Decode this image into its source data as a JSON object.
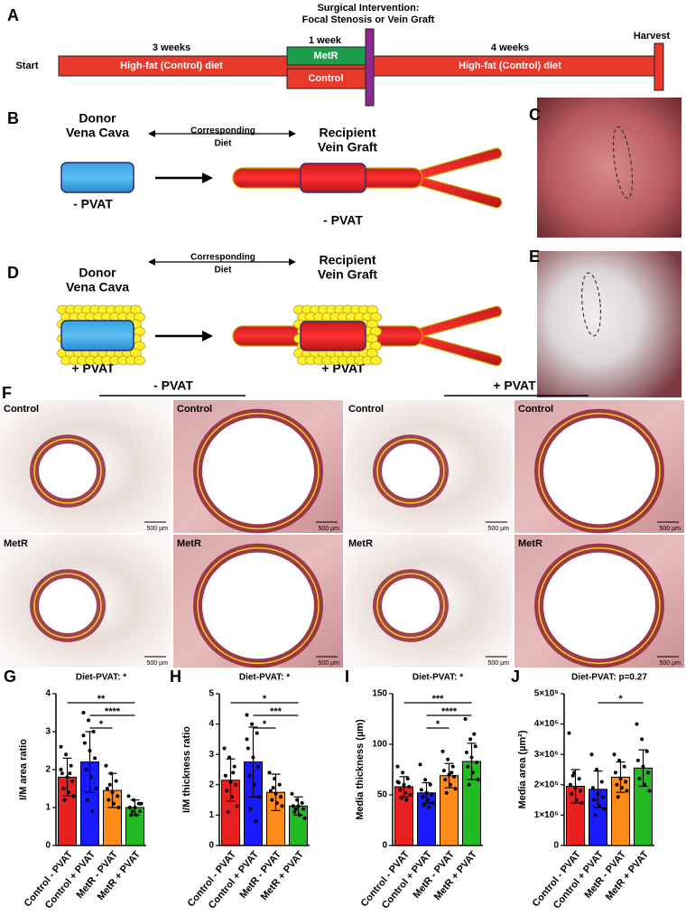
{
  "panel_a": {
    "label": "A",
    "title_lines": [
      "Surgical Intervention:",
      "Focal Stenosis or Vein Graft"
    ],
    "start": "Start",
    "phase1_duration": "3 weeks",
    "phase1_diet": "High-fat (Control) diet",
    "phase2_duration": "1 week",
    "phase2_metr": "MetR",
    "phase2_control": "Control",
    "phase3_duration": "4 weeks",
    "phase3_diet": "High-fat (Control) diet",
    "harvest": "Harvest"
  },
  "panel_b": {
    "label": "B",
    "donor": [
      "Donor",
      "Vena Cava"
    ],
    "donor_condition": "- PVAT",
    "corresponding": [
      "Corresponding",
      "Diet"
    ],
    "recipient": [
      "Recipient",
      "Vein Graft"
    ],
    "recipient_condition": "- PVAT"
  },
  "panel_c": {
    "label": "C"
  },
  "panel_d": {
    "label": "D",
    "donor": [
      "Donor",
      "Vena Cava"
    ],
    "donor_condition": "+ PVAT",
    "corresponding": [
      "Corresponding",
      "Diet"
    ],
    "recipient": [
      "Recipient",
      "Vein Graft"
    ],
    "recipient_condition": "+ PVAT"
  },
  "panel_e": {
    "label": "E"
  },
  "panel_f": {
    "label": "F",
    "groups": [
      "- PVAT",
      "+ PVAT"
    ],
    "images": [
      {
        "label": "Control",
        "scale": "500 µm"
      },
      {
        "label": "Control",
        "scale": "500 µm"
      },
      {
        "label": "Control",
        "scale": "500 µm"
      },
      {
        "label": "Control",
        "scale": "500 µm"
      },
      {
        "label": "MetR",
        "scale": "500 µm"
      },
      {
        "label": "MetR",
        "scale": "500 µm"
      },
      {
        "label": "MetR",
        "scale": "500 µm"
      },
      {
        "label": "MetR",
        "scale": "500 µm"
      }
    ]
  },
  "chart_data": [
    {
      "type": "bar",
      "panel": "G",
      "title": "Diet-PVAT: *",
      "y_label": "I/M area ratio",
      "categories": [
        "Control - PVAT",
        "Control + PVAT",
        "MetR - PVAT",
        "MetR + PVAT"
      ],
      "colors": [
        "#e8201f",
        "#1a1aff",
        "#ff8c1a",
        "#22bb22"
      ],
      "values": [
        1.8,
        2.2,
        1.45,
        1.0
      ],
      "errors": [
        0.5,
        0.8,
        0.45,
        0.2
      ],
      "points": [
        [
          2.6,
          2.4,
          2.1,
          1.9,
          1.8,
          1.7,
          1.5,
          1.4,
          1.3,
          1.2,
          1.9,
          2.0
        ],
        [
          3.5,
          3.3,
          3.0,
          2.7,
          2.5,
          2.3,
          2.0,
          1.8,
          1.5,
          1.2,
          0.9,
          2.9
        ],
        [
          2.1,
          1.9,
          1.7,
          1.5,
          1.4,
          1.3,
          1.2,
          1.1,
          1.0,
          1.6
        ],
        [
          1.3,
          1.2,
          1.1,
          1.0,
          1.0,
          0.9,
          0.8,
          0.8,
          1.1,
          0.9
        ]
      ],
      "ylim": [
        0,
        4
      ],
      "yticks": [
        0,
        1,
        2,
        3,
        4
      ],
      "comparisons": [
        {
          "label": "**",
          "groups": [
            "Control - PVAT",
            "MetR + PVAT"
          ]
        },
        {
          "label": "****",
          "groups": [
            "Control + PVAT",
            "MetR + PVAT"
          ]
        },
        {
          "label": "*",
          "groups": [
            "Control + PVAT",
            "MetR - PVAT"
          ]
        }
      ]
    },
    {
      "type": "bar",
      "panel": "H",
      "title": "Diet-PVAT: *",
      "y_label": "I/M thickness ratio",
      "categories": [
        "Control - PVAT",
        "Control + PVAT",
        "MetR - PVAT",
        "MetR + PVAT"
      ],
      "colors": [
        "#e8201f",
        "#1a1aff",
        "#ff8c1a",
        "#22bb22"
      ],
      "values": [
        2.15,
        2.75,
        1.75,
        1.3
      ],
      "errors": [
        0.7,
        1.15,
        0.6,
        0.3
      ],
      "points": [
        [
          3.2,
          2.9,
          2.6,
          2.3,
          2.1,
          2.0,
          1.8,
          1.6,
          1.3,
          1.1,
          2.4
        ],
        [
          4.3,
          4.0,
          3.7,
          3.2,
          2.9,
          2.6,
          2.3,
          2.0,
          1.6,
          1.2,
          0.8,
          3.5
        ],
        [
          2.4,
          2.2,
          2.0,
          1.8,
          1.7,
          1.6,
          1.5,
          1.4,
          1.3,
          1.9
        ],
        [
          1.7,
          1.5,
          1.4,
          1.3,
          1.3,
          1.2,
          1.1,
          1.0,
          0.9,
          1.2
        ]
      ],
      "ylim": [
        0,
        5
      ],
      "yticks": [
        0,
        1,
        2,
        3,
        4,
        5
      ],
      "comparisons": [
        {
          "label": "*",
          "groups": [
            "Control - PVAT",
            "MetR + PVAT"
          ]
        },
        {
          "label": "***",
          "groups": [
            "Control + PVAT",
            "MetR + PVAT"
          ]
        },
        {
          "label": "*",
          "groups": [
            "Control + PVAT",
            "MetR - PVAT"
          ]
        }
      ]
    },
    {
      "type": "bar",
      "panel": "I",
      "title": "Diet-PVAT: *",
      "y_label": "Media thickness (µm)",
      "categories": [
        "Control - PVAT",
        "Control + PVAT",
        "MetR - PVAT",
        "MetR + PVAT"
      ],
      "colors": [
        "#e8201f",
        "#1a1aff",
        "#ff8c1a",
        "#22bb22"
      ],
      "values": [
        58,
        52,
        69,
        83
      ],
      "errors": [
        10,
        10,
        12,
        18
      ],
      "points": [
        [
          78,
          72,
          66,
          62,
          60,
          58,
          55,
          52,
          50,
          47,
          45,
          63
        ],
        [
          80,
          65,
          60,
          55,
          52,
          50,
          48,
          45,
          42,
          40,
          38
        ],
        [
          93,
          85,
          78,
          74,
          70,
          68,
          65,
          60,
          56,
          52,
          72
        ],
        [
          125,
          105,
          98,
          92,
          87,
          82,
          78,
          72,
          65,
          60,
          110
        ]
      ],
      "ylim": [
        0,
        150
      ],
      "yticks": [
        0,
        50,
        100,
        150
      ],
      "comparisons": [
        {
          "label": "***",
          "groups": [
            "Control - PVAT",
            "MetR + PVAT"
          ]
        },
        {
          "label": "****",
          "groups": [
            "Control + PVAT",
            "MetR + PVAT"
          ]
        },
        {
          "label": "*",
          "groups": [
            "Control + PVAT",
            "MetR - PVAT"
          ]
        }
      ]
    },
    {
      "type": "bar",
      "panel": "J",
      "title": "Diet-PVAT: p=0.27",
      "y_label": "Media area (µm²)",
      "categories": [
        "Control - PVAT",
        "Control + PVAT",
        "MetR - PVAT",
        "MetR + PVAT"
      ],
      "colors": [
        "#e8201f",
        "#1a1aff",
        "#ff8c1a",
        "#22bb22"
      ],
      "values": [
        195000,
        185000,
        225000,
        255000
      ],
      "errors": [
        55000,
        60000,
        50000,
        60000
      ],
      "points": [
        [
          370000,
          240000,
          220000,
          200000,
          190000,
          180000,
          170000,
          150000,
          140000,
          230000
        ],
        [
          300000,
          250000,
          210000,
          190000,
          170000,
          160000,
          150000,
          130000,
          120000,
          100000
        ],
        [
          300000,
          280000,
          260000,
          240000,
          220000,
          210000,
          200000,
          190000,
          180000,
          160000
        ],
        [
          400000,
          350000,
          310000,
          280000,
          260000,
          240000,
          220000,
          200000,
          180000
        ]
      ],
      "ylim": [
        0,
        500000
      ],
      "yticks": [
        0,
        {
          "value": 100000,
          "label": "1×10⁵"
        },
        {
          "value": 200000,
          "label": "2×10⁵"
        },
        {
          "value": 300000,
          "label": "3×10⁵"
        },
        {
          "value": 400000,
          "label": "4×10⁵"
        },
        {
          "value": 500000,
          "label": "5×10⁵"
        }
      ],
      "comparisons": [
        {
          "label": "*",
          "groups": [
            "Control + PVAT",
            "MetR + PVAT"
          ]
        }
      ]
    }
  ]
}
